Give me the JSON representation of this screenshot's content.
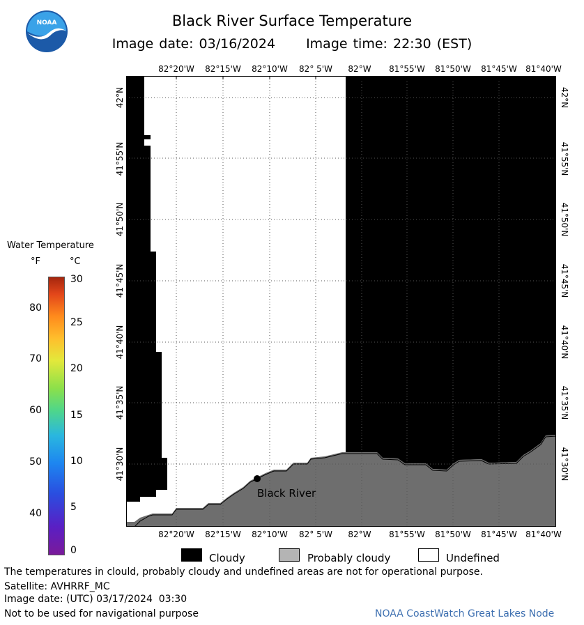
{
  "header": {
    "title": "Black River Surface Temperature",
    "image_date": "Image date: 03/16/2024",
    "image_time": "Image time: 22:30 (EST)"
  },
  "logo": {
    "text": "NOAA",
    "colors": {
      "outer": "#1c5aa8",
      "inner": "#3aa2e8",
      "wing": "#ffffff"
    }
  },
  "map": {
    "longitude_labels": [
      "82°20'W",
      "82°15'W",
      "82°10'W",
      "82° 5'W",
      "82°W",
      "81°55'W",
      "81°50'W",
      "81°45'W",
      "81°40'W"
    ],
    "latitude_labels": [
      "42°N",
      "41°55'N",
      "41°50'N",
      "41°45'N",
      "41°40'N",
      "41°35'N",
      "41°30'N"
    ],
    "station": {
      "label": "Black River",
      "icon": "station-dot-icon"
    },
    "colors": {
      "cloudy": "#000000",
      "land": "#6e6e6e",
      "undefined": "#ffffff",
      "grid": "#555555"
    }
  },
  "colorbar": {
    "title": "Water Temperature",
    "unit_f": "°F",
    "unit_c": "°C",
    "f_ticks": [
      "80",
      "70",
      "60",
      "50",
      "40"
    ],
    "c_ticks": [
      "30",
      "25",
      "20",
      "15",
      "10",
      "5",
      "0"
    ]
  },
  "legend": {
    "cloudy": {
      "label": "Cloudy",
      "color": "#000000"
    },
    "probably_cloudy": {
      "label": "Probably cloudy",
      "color": "#b4b4b4"
    },
    "undefined": {
      "label": "Undefined",
      "color": "#ffffff"
    }
  },
  "footer": {
    "disclaimer": "The temperatures in clould, probably cloudy and undefined areas are not for operational purpose.",
    "satellite": "Satellite: AVHRRF_MC",
    "utc_date": "Image date: (UTC) 03/17/2024  03:30",
    "nav_warning": "Not to be used for navigational purpose",
    "node": "NOAA CoastWatch Great Lakes Node"
  }
}
